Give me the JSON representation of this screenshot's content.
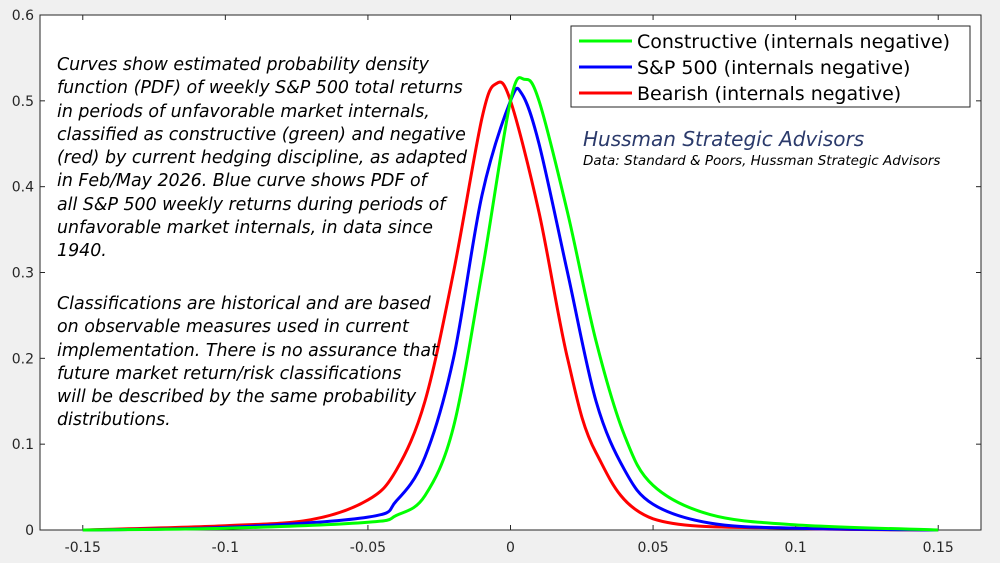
{
  "chart_data": {
    "type": "line",
    "title": "",
    "xlabel": "",
    "ylabel": "",
    "xlim": [
      -0.165,
      0.165
    ],
    "ylim": [
      0,
      0.6
    ],
    "x_ticks": [
      "-0.15",
      "-0.1",
      "-0.05",
      "0",
      "0.05",
      "0.1",
      "0.15"
    ],
    "y_ticks": [
      "0",
      "0.1",
      "0.2",
      "0.3",
      "0.4",
      "0.5",
      "0.6"
    ],
    "grid": false,
    "legend_position": "top-right",
    "series": [
      {
        "name": "Constructive (internals negative)",
        "color": "#00ff00",
        "x": [
          -0.15,
          -0.1,
          -0.05,
          -0.04,
          -0.03,
          -0.02,
          -0.01,
          0,
          0.005,
          0.01,
          0.02,
          0.03,
          0.04,
          0.05,
          0.07,
          0.1,
          0.15
        ],
        "y": [
          0.0,
          0.002,
          0.009,
          0.017,
          0.04,
          0.12,
          0.3,
          0.5,
          0.525,
          0.5,
          0.37,
          0.22,
          0.11,
          0.052,
          0.018,
          0.006,
          0.0
        ]
      },
      {
        "name": "S&P 500 (internals negative)",
        "color": "#0000ff",
        "x": [
          -0.15,
          -0.1,
          -0.05,
          -0.04,
          -0.03,
          -0.02,
          -0.01,
          0,
          0.004,
          0.01,
          0.02,
          0.03,
          0.04,
          0.05,
          0.07,
          0.1,
          0.15
        ],
        "y": [
          0.0,
          0.003,
          0.015,
          0.034,
          0.085,
          0.2,
          0.39,
          0.5,
          0.508,
          0.45,
          0.3,
          0.15,
          0.07,
          0.03,
          0.008,
          0.002,
          0.0
        ]
      },
      {
        "name": "Bearish (internals negative)",
        "color": "#ff0000",
        "x": [
          -0.15,
          -0.1,
          -0.07,
          -0.05,
          -0.04,
          -0.03,
          -0.02,
          -0.01,
          -0.005,
          0,
          0.01,
          0.02,
          0.03,
          0.05,
          0.1,
          0.15
        ],
        "y": [
          0.0,
          0.005,
          0.012,
          0.035,
          0.07,
          0.15,
          0.3,
          0.48,
          0.52,
          0.5,
          0.37,
          0.2,
          0.09,
          0.013,
          0.002,
          0.0
        ]
      }
    ]
  },
  "annotations": {
    "notes_block_1": [
      "Curves show estimated probability density",
      "function (PDF) of weekly S&P 500 total returns",
      "in periods of unfavorable market internals,",
      "classified as constructive (green) and negative",
      "(red) by current hedging discipline, as adapted",
      "in Feb/May 2026. Blue curve shows PDF of",
      "all S&P 500 weekly returns during periods of",
      "unfavorable market internals, in data since",
      "1940."
    ],
    "notes_block_2": [
      "Classifications are historical and are based",
      "on observable measures used in current",
      "implementation. There is no assurance that",
      "future market return/risk classifications",
      "will be described by the same probability",
      "distributions."
    ],
    "brand": "Hussman Strategic Advisors",
    "source": "Data: Standard & Poors, Hussman Strategic Advisors"
  }
}
